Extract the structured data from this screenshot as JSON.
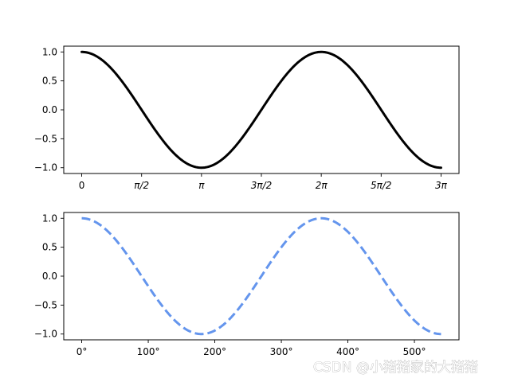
{
  "chart_data": [
    {
      "type": "line",
      "title": "",
      "xlabel": "",
      "ylabel": "",
      "function": "cos(x)",
      "x_range": [
        0,
        9.42477796
      ],
      "xlim": [
        -0.4712,
        9.896
      ],
      "ylim": [
        -1.1,
        1.1
      ],
      "x_ticks": [
        0,
        1.5707963,
        3.1415927,
        4.712389,
        6.2831853,
        7.8539816,
        9.424778
      ],
      "x_tick_labels": [
        "0",
        "π/2",
        "π",
        "3π/2",
        "2π",
        "5π/2",
        "3π"
      ],
      "y_ticks": [
        1.0,
        0.5,
        0.0,
        -0.5,
        -1.0
      ],
      "y_tick_labels": [
        "1.0",
        "0.5",
        "0.0",
        "−0.5",
        "−1.0"
      ],
      "series": [
        {
          "style": "solid",
          "color": "#000000",
          "linewidth": 3
        }
      ]
    },
    {
      "type": "line",
      "title": "",
      "xlabel": "",
      "ylabel": "",
      "function": "cos(x in degrees)",
      "x_range": [
        0,
        540
      ],
      "xlim": [
        -27,
        567
      ],
      "ylim": [
        -1.1,
        1.1
      ],
      "x_ticks": [
        0,
        100,
        200,
        300,
        400,
        500
      ],
      "x_tick_labels": [
        "0°",
        "100°",
        "200°",
        "300°",
        "400°",
        "500°"
      ],
      "y_ticks": [
        1.0,
        0.5,
        0.0,
        -0.5,
        -1.0
      ],
      "y_tick_labels": [
        "1.0",
        "0.5",
        "0.0",
        "−0.5",
        "−1.0"
      ],
      "series": [
        {
          "style": "dashed",
          "color": "#6495ED",
          "linewidth": 3
        }
      ]
    }
  ],
  "watermark": {
    "text": "CSDN @小猪猪家的大猪猪"
  }
}
